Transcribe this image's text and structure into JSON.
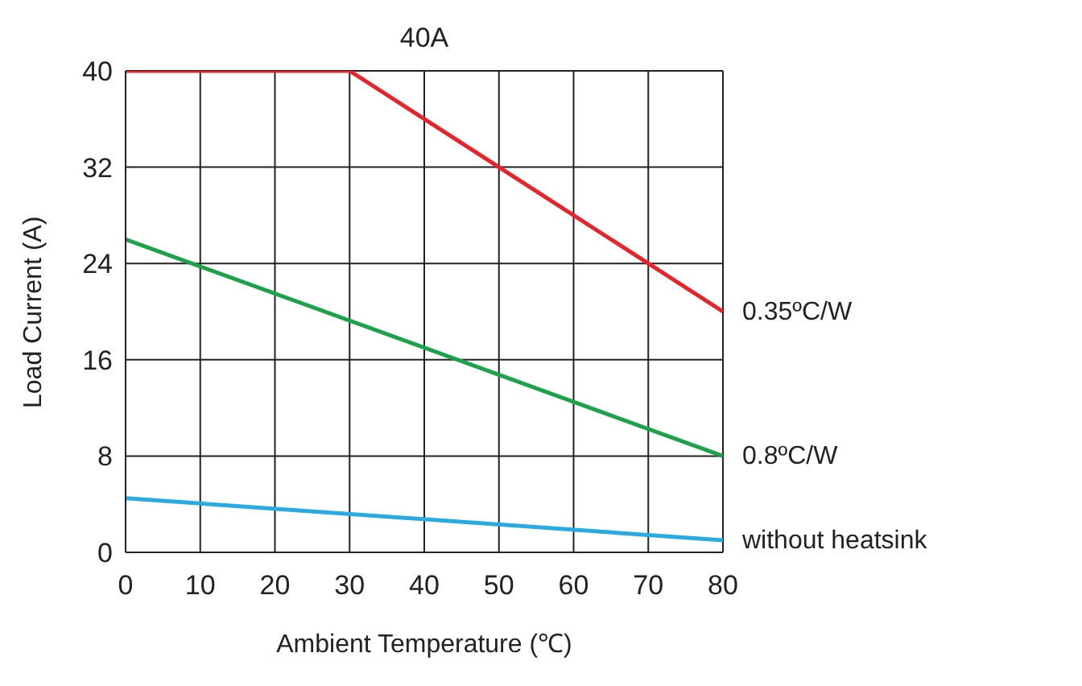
{
  "chart_data": {
    "type": "line",
    "title": "40A",
    "xlabel": "Ambient Temperature (℃)",
    "ylabel": "Load Current (A)",
    "x": [
      0,
      30,
      80
    ],
    "series": [
      {
        "name": "0.35ºC/W",
        "color": "#e8242a",
        "values": [
          40,
          40,
          20
        ]
      },
      {
        "name": "0.8ºC/W",
        "color": "#1ca34a",
        "values": [
          26,
          null,
          8
        ]
      },
      {
        "name": "without heatsink",
        "color": "#29abe2",
        "values": [
          4.5,
          null,
          1
        ]
      }
    ],
    "xlim": [
      0,
      80
    ],
    "xticks": [
      0,
      10,
      20,
      30,
      40,
      50,
      60,
      70,
      80
    ],
    "ylim": [
      0,
      40
    ],
    "yticks": [
      0,
      8,
      16,
      24,
      32,
      40
    ],
    "grid": true,
    "marker": "none",
    "line_style": "solid"
  }
}
